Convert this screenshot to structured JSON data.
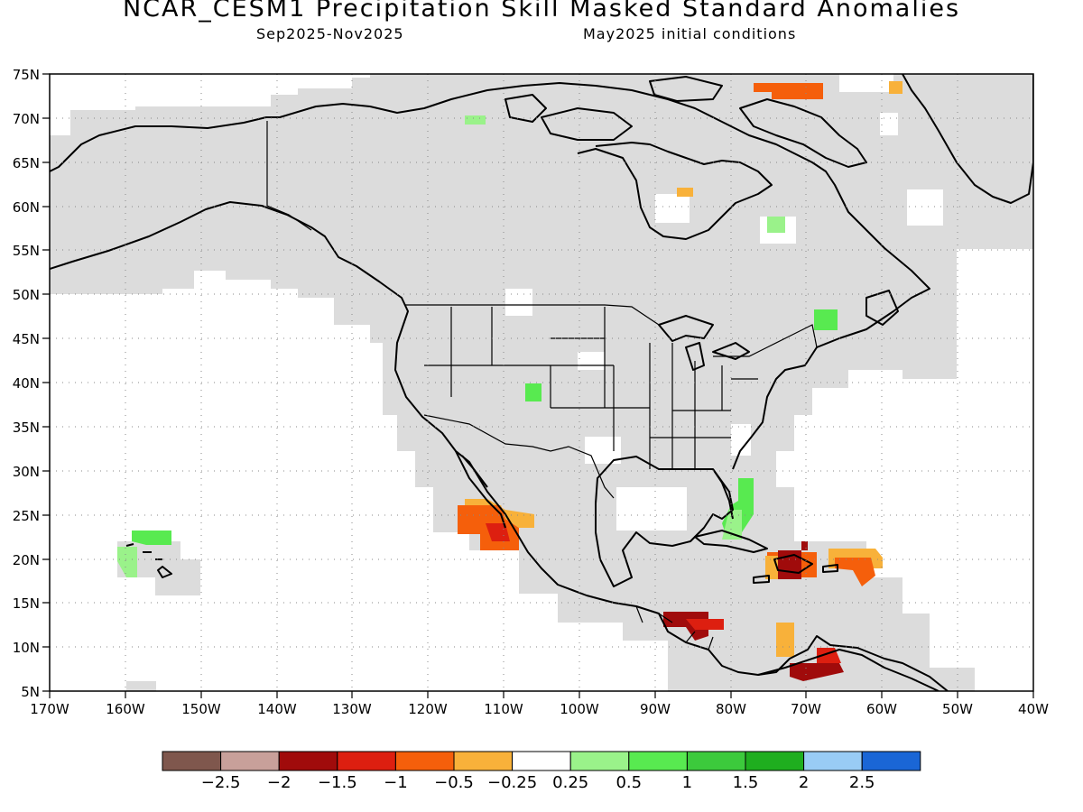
{
  "header": {
    "title": "NCAR_CESM1 Precipitation Skill Masked Standard Anomalies",
    "period": "Sep2025-Nov2025",
    "init": "May2025 initial conditions"
  },
  "axes": {
    "lat_labels": [
      "75N",
      "70N",
      "65N",
      "60N",
      "55N",
      "50N",
      "45N",
      "40N",
      "35N",
      "30N",
      "25N",
      "20N",
      "15N",
      "10N",
      "5N"
    ],
    "lon_labels": [
      "170W",
      "160W",
      "150W",
      "140W",
      "130W",
      "120W",
      "110W",
      "100W",
      "90W",
      "80W",
      "70W",
      "60W",
      "50W",
      "40W"
    ]
  },
  "colors": {
    "mask_gray": "#dcdcdc",
    "coast": "#000000",
    "grid": "#888888"
  },
  "colorbar": {
    "colors": [
      "#7f574d",
      "#c8a09a",
      "#a00b0b",
      "#dd1f10",
      "#f55f0b",
      "#f8b13a",
      "#ffffff",
      "#9af28a",
      "#58ea50",
      "#3cca3c",
      "#1fae1f",
      "#99ccf5",
      "#1a66d6"
    ],
    "labels": [
      "-2.5",
      "-2",
      "-1.5",
      "-1",
      "-0.5",
      "-0.25",
      "0.25",
      "0.5",
      "1",
      "1.5",
      "2",
      "2.5"
    ]
  },
  "map_data": {
    "extent": {
      "lon_min": -170,
      "lon_max": -40,
      "lat_min": 5,
      "lat_max": 75
    },
    "anomaly_patches": [
      {
        "region": "Baja California / Gulf of California",
        "value": -1
      },
      {
        "region": "Hispaniola",
        "value": -1.5
      },
      {
        "region": "Puerto Rico / Leeward Islands",
        "value": -1
      },
      {
        "region": "Central America",
        "value": -1.5
      },
      {
        "region": "Northern South America",
        "value": -1.5
      },
      {
        "region": "Bahamas",
        "value": 1
      },
      {
        "region": "Hawaii",
        "value": 0.5
      },
      {
        "region": "Quebec / New Brunswick",
        "value": 1
      },
      {
        "region": "Northern Hudson Bay",
        "value": -1
      },
      {
        "region": "Colorado",
        "value": 1
      }
    ]
  }
}
